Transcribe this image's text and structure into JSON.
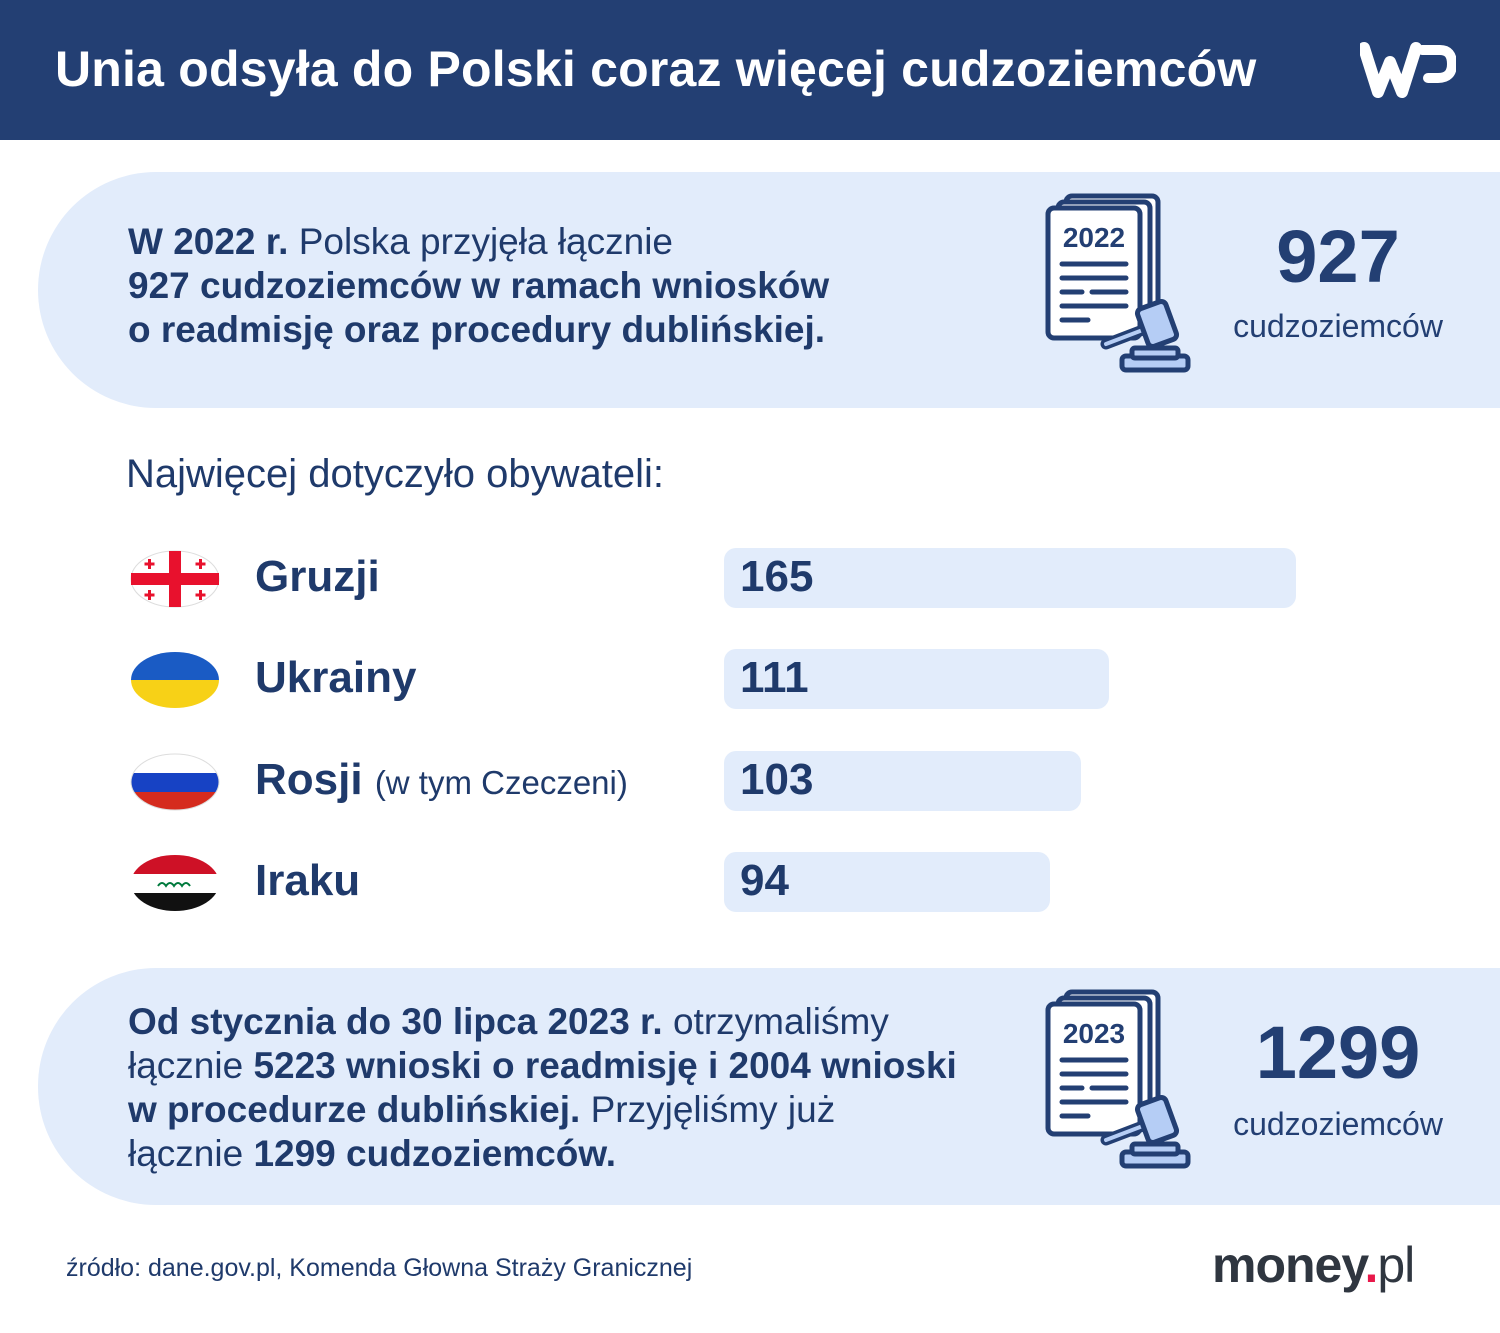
{
  "header": {
    "title": "Unia odsyła do Polski coraz więcej cudzoziemców",
    "logo_text": "WP"
  },
  "panel_2022": {
    "lines": [
      [
        {
          "t": "W 2022 r.",
          "b": true
        },
        {
          "t": " Polska przyjęła łącznie",
          "b": false
        }
      ],
      [
        {
          "t": "927 cudzoziemców w ramach wniosków",
          "b": true
        }
      ],
      [
        {
          "t": "o readmisję oraz procedury dublińskiej.",
          "b": true
        }
      ]
    ],
    "icon_year": "2022",
    "big_number": "927",
    "unit": "cudzoziemców"
  },
  "subtitle": "Najwięcej dotyczyło obywateli:",
  "chart_data": {
    "type": "bar",
    "orientation": "horizontal",
    "categories": [
      "Gruzji",
      "Ukrainy",
      "Rosji",
      "Iraku"
    ],
    "category_notes": [
      "",
      "",
      "(w tym Czeczeni)",
      ""
    ],
    "values": [
      165,
      111,
      103,
      94
    ],
    "value_labels": [
      "165",
      "111",
      "103",
      "94"
    ],
    "flags": [
      "georgia",
      "ukraine",
      "russia",
      "iraq"
    ],
    "bar_color": "#e2ecfb",
    "grid": false
  },
  "panel_2023": {
    "lines": [
      [
        {
          "t": "Od stycznia do 30 lipca 2023 r.",
          "b": true
        },
        {
          "t": " otrzymaliśmy",
          "b": false
        }
      ],
      [
        {
          "t": "łącznie ",
          "b": false
        },
        {
          "t": "5223 wnioski o readmisję i 2004 wnioski",
          "b": true
        }
      ],
      [
        {
          "t": "w procedurze dublińskiej.",
          "b": true
        },
        {
          "t": " Przyjęliśmy już",
          "b": false
        }
      ],
      [
        {
          "t": "łącznie ",
          "b": false
        },
        {
          "t": "1299 cudzoziemców.",
          "b": true
        }
      ]
    ],
    "icon_year": "2023",
    "big_number": "1299",
    "unit": "cudzoziemców"
  },
  "footer": {
    "source": "źródło: dane.gov.pl, Komenda Głowna Straży Granicznej",
    "brand_main": "money",
    "brand_dot": ".",
    "brand_tld": "pl"
  },
  "colors": {
    "header": "#233f73",
    "text": "#1f3a6b",
    "panel": "#e2ecfb",
    "brand_dot": "#e8184a"
  }
}
